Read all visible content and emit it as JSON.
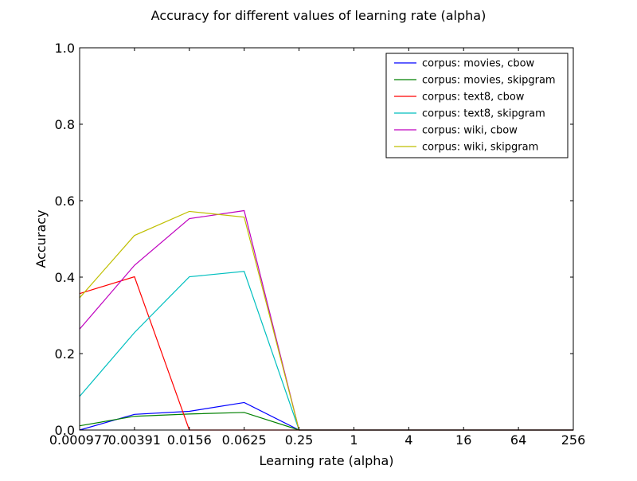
{
  "chart_data": {
    "type": "line",
    "title": "Accuracy for different values of learning rate (alpha)",
    "xlabel": "Learning rate (alpha)",
    "ylabel": "Accuracy",
    "categories": [
      "0.000977",
      "0.00391",
      "0.0156",
      "0.0625",
      "0.25",
      "1",
      "4",
      "16",
      "64",
      "256"
    ],
    "y_ticks": [
      "0.0",
      "0.2",
      "0.4",
      "0.6",
      "0.8",
      "1.0"
    ],
    "ylim": [
      0,
      1
    ],
    "grid": false,
    "legend_position": "top-right",
    "series": [
      {
        "name": "corpus: movies, cbow",
        "color": "#0000ff",
        "values": [
          0.0,
          0.041,
          0.049,
          0.072,
          0.0,
          0.0,
          0.0,
          0.0,
          0.0,
          0.0
        ]
      },
      {
        "name": "corpus: movies, skipgram",
        "color": "#008000",
        "values": [
          0.011,
          0.036,
          0.042,
          0.046,
          0.0,
          0.0,
          0.0,
          0.0,
          0.0,
          0.0
        ]
      },
      {
        "name": "corpus: text8, cbow",
        "color": "#ff0000",
        "values": [
          0.357,
          0.401,
          0.0,
          0.0,
          0.0,
          0.0,
          0.0,
          0.0,
          0.0,
          0.0
        ]
      },
      {
        "name": "corpus: text8, skipgram",
        "color": "#00bfbf",
        "values": [
          0.088,
          0.255,
          0.401,
          0.415,
          0.0,
          0.0,
          0.0,
          0.0,
          0.0,
          0.0
        ]
      },
      {
        "name": "corpus: wiki, cbow",
        "color": "#bf00bf",
        "values": [
          0.264,
          0.431,
          0.553,
          0.574,
          0.0,
          0.0,
          0.0,
          0.0,
          0.0,
          0.0
        ]
      },
      {
        "name": "corpus: wiki, skipgram",
        "color": "#bfbf00",
        "values": [
          0.346,
          0.509,
          0.572,
          0.557,
          0.0,
          0.0,
          0.0,
          0.0,
          0.0,
          0.0
        ]
      }
    ]
  }
}
